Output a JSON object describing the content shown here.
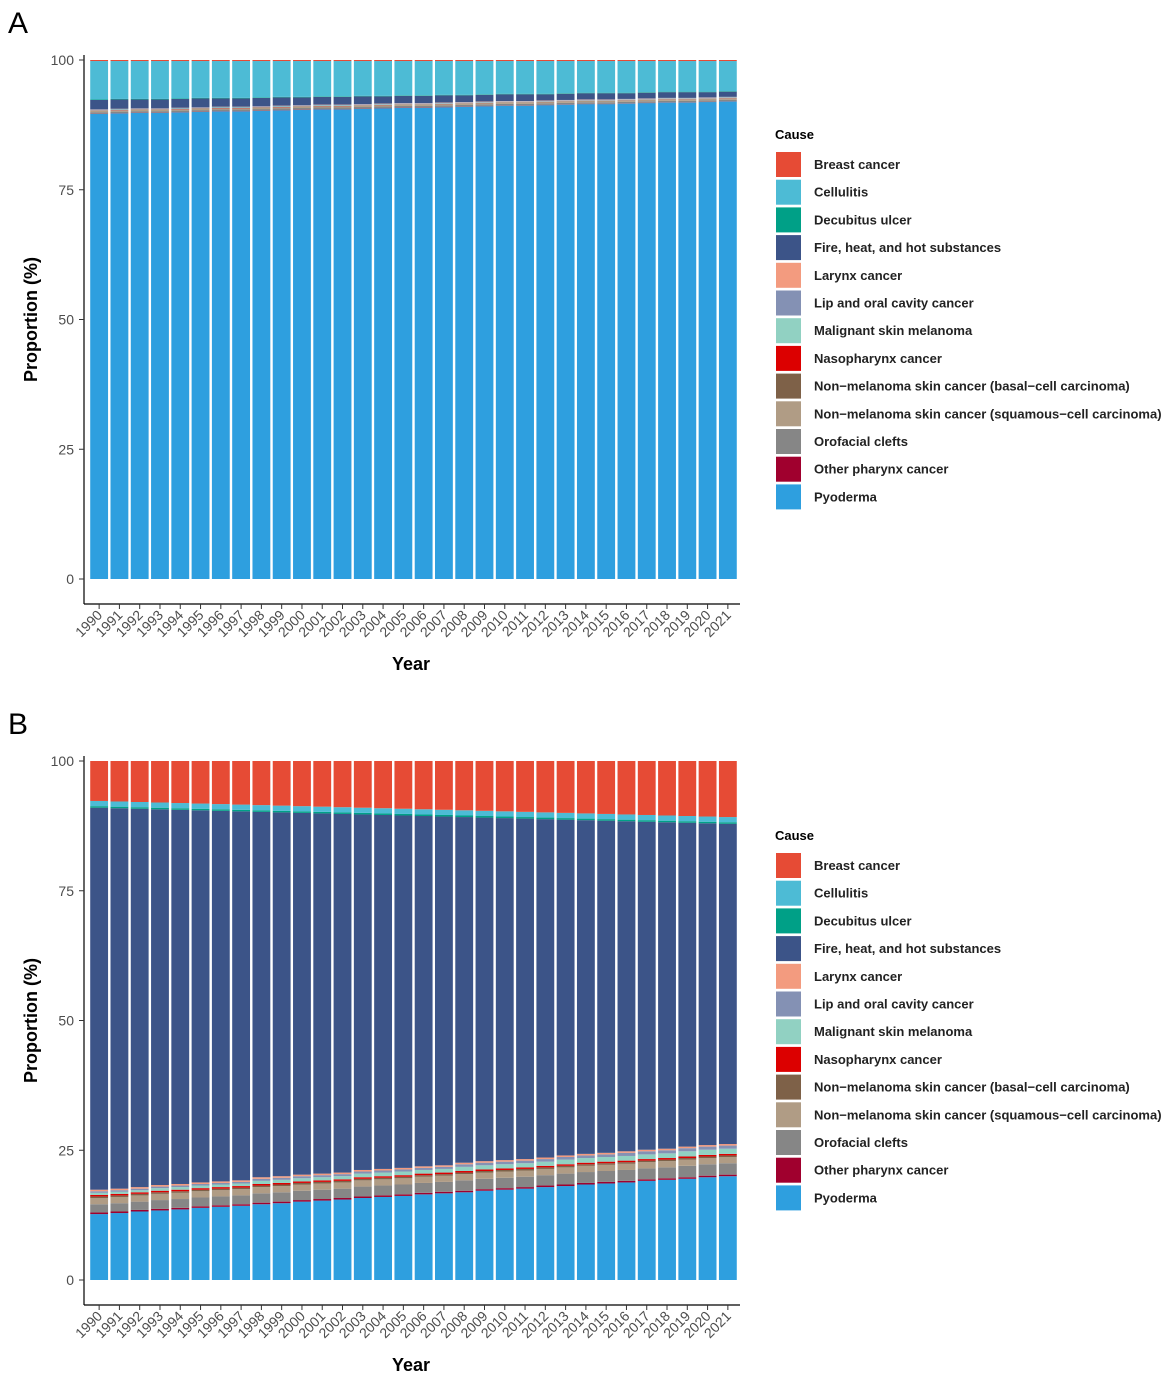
{
  "chart_data": [
    {
      "type": "stacked_bar",
      "panel": "A",
      "x_label": "Year",
      "y_label": "Proportion (%)",
      "legend_title": "Cause",
      "categories": [
        "1990",
        "1991",
        "1992",
        "1993",
        "1994",
        "1995",
        "1996",
        "1997",
        "1998",
        "1999",
        "2000",
        "2001",
        "2002",
        "2003",
        "2004",
        "2005",
        "2006",
        "2007",
        "2008",
        "2009",
        "2010",
        "2011",
        "2012",
        "2013",
        "2014",
        "2015",
        "2016",
        "2017",
        "2018",
        "2019",
        "2020",
        "2021"
      ],
      "ylim": [
        0,
        100
      ],
      "yticks": [
        0,
        25,
        50,
        75,
        100
      ],
      "series": [
        {
          "name": "Breast cancer",
          "color": "#E64B35",
          "values": [
            0.2,
            0.2,
            0.2,
            0.2,
            0.2,
            0.2,
            0.2,
            0.2,
            0.2,
            0.2,
            0.2,
            0.2,
            0.2,
            0.2,
            0.2,
            0.2,
            0.2,
            0.2,
            0.2,
            0.2,
            0.2,
            0.2,
            0.2,
            0.2,
            0.2,
            0.2,
            0.2,
            0.2,
            0.2,
            0.2,
            0.2,
            0.2
          ]
        },
        {
          "name": "Cellulitis",
          "color": "#4DBBD5",
          "values": [
            7.4,
            7.3,
            7.3,
            7.3,
            7.2,
            7.1,
            7.1,
            7.1,
            7.0,
            6.9,
            6.9,
            6.8,
            6.8,
            6.7,
            6.7,
            6.6,
            6.6,
            6.5,
            6.5,
            6.4,
            6.3,
            6.3,
            6.3,
            6.2,
            6.1,
            6.1,
            6.1,
            6.0,
            5.9,
            5.9,
            5.9,
            5.8
          ]
        },
        {
          "name": "Decubitus ulcer",
          "color": "#00A087",
          "values": [
            0.1,
            0.1,
            0.1,
            0.1,
            0.1,
            0.1,
            0.1,
            0.1,
            0.1,
            0.1,
            0.1,
            0.1,
            0.1,
            0.1,
            0.1,
            0.1,
            0.1,
            0.1,
            0.1,
            0.1,
            0.1,
            0.1,
            0.1,
            0.1,
            0.1,
            0.1,
            0.1,
            0.1,
            0.1,
            0.1,
            0.1,
            0.1
          ]
        },
        {
          "name": "Fire, heat, and hot substances",
          "color": "#3C5488",
          "values": [
            1.8,
            1.8,
            1.7,
            1.7,
            1.7,
            1.7,
            1.6,
            1.6,
            1.6,
            1.6,
            1.5,
            1.5,
            1.5,
            1.5,
            1.4,
            1.4,
            1.4,
            1.4,
            1.3,
            1.3,
            1.3,
            1.3,
            1.2,
            1.2,
            1.2,
            1.2,
            1.1,
            1.1,
            1.1,
            1.1,
            1.0,
            1.0
          ]
        },
        {
          "name": "Larynx cancer",
          "color": "#F39B7F",
          "values": [
            0.05,
            0.05,
            0.05,
            0.05,
            0.05,
            0.05,
            0.05,
            0.05,
            0.05,
            0.05,
            0.05,
            0.05,
            0.05,
            0.05,
            0.05,
            0.05,
            0.05,
            0.05,
            0.05,
            0.05,
            0.05,
            0.05,
            0.05,
            0.05,
            0.05,
            0.05,
            0.05,
            0.05,
            0.05,
            0.05,
            0.05,
            0.05
          ]
        },
        {
          "name": "Lip and oral cavity cancer",
          "color": "#8491B4",
          "values": [
            0.1,
            0.1,
            0.1,
            0.1,
            0.1,
            0.1,
            0.1,
            0.1,
            0.1,
            0.1,
            0.1,
            0.1,
            0.1,
            0.1,
            0.1,
            0.1,
            0.1,
            0.1,
            0.1,
            0.1,
            0.1,
            0.1,
            0.1,
            0.1,
            0.1,
            0.1,
            0.1,
            0.1,
            0.1,
            0.1,
            0.1,
            0.1
          ]
        },
        {
          "name": "Malignant skin melanoma",
          "color": "#91D1C2",
          "values": [
            0.1,
            0.1,
            0.1,
            0.1,
            0.1,
            0.1,
            0.1,
            0.1,
            0.1,
            0.1,
            0.1,
            0.1,
            0.1,
            0.1,
            0.1,
            0.1,
            0.1,
            0.1,
            0.1,
            0.1,
            0.1,
            0.1,
            0.1,
            0.1,
            0.1,
            0.1,
            0.1,
            0.1,
            0.1,
            0.1,
            0.1,
            0.1
          ]
        },
        {
          "name": "Nasopharynx cancer",
          "color": "#DC0000",
          "values": [
            0.05,
            0.05,
            0.05,
            0.05,
            0.05,
            0.05,
            0.05,
            0.05,
            0.05,
            0.05,
            0.05,
            0.05,
            0.05,
            0.05,
            0.05,
            0.05,
            0.05,
            0.05,
            0.05,
            0.05,
            0.05,
            0.05,
            0.05,
            0.05,
            0.05,
            0.05,
            0.05,
            0.05,
            0.05,
            0.05,
            0.05,
            0.05
          ]
        },
        {
          "name": "Non−melanoma skin cancer (basal−cell carcinoma)",
          "color": "#7E6148",
          "values": [
            0.05,
            0.05,
            0.05,
            0.05,
            0.05,
            0.05,
            0.05,
            0.05,
            0.05,
            0.05,
            0.05,
            0.05,
            0.05,
            0.05,
            0.05,
            0.05,
            0.05,
            0.05,
            0.05,
            0.05,
            0.05,
            0.05,
            0.05,
            0.05,
            0.05,
            0.05,
            0.05,
            0.05,
            0.05,
            0.05,
            0.05,
            0.05
          ]
        },
        {
          "name": "Non−melanoma skin cancer (squamous−cell carcinoma)",
          "color": "#B09C85",
          "values": [
            0.2,
            0.2,
            0.2,
            0.2,
            0.2,
            0.2,
            0.2,
            0.2,
            0.2,
            0.2,
            0.2,
            0.2,
            0.2,
            0.2,
            0.2,
            0.2,
            0.2,
            0.2,
            0.2,
            0.2,
            0.2,
            0.2,
            0.2,
            0.2,
            0.2,
            0.2,
            0.2,
            0.2,
            0.2,
            0.2,
            0.2,
            0.2
          ]
        },
        {
          "name": "Orofacial clefts",
          "color": "#868686",
          "values": [
            0.3,
            0.3,
            0.3,
            0.3,
            0.3,
            0.3,
            0.3,
            0.3,
            0.3,
            0.3,
            0.3,
            0.3,
            0.3,
            0.3,
            0.3,
            0.3,
            0.3,
            0.3,
            0.3,
            0.3,
            0.3,
            0.3,
            0.3,
            0.3,
            0.3,
            0.3,
            0.3,
            0.3,
            0.3,
            0.3,
            0.3,
            0.3
          ]
        },
        {
          "name": "Other pharynx cancer",
          "color": "#A0002E",
          "values": [
            0.05,
            0.05,
            0.05,
            0.05,
            0.05,
            0.05,
            0.05,
            0.05,
            0.05,
            0.05,
            0.05,
            0.05,
            0.05,
            0.05,
            0.05,
            0.05,
            0.05,
            0.05,
            0.05,
            0.05,
            0.05,
            0.05,
            0.05,
            0.05,
            0.05,
            0.05,
            0.05,
            0.05,
            0.05,
            0.05,
            0.05,
            0.05
          ]
        },
        {
          "name": "Pyoderma",
          "color": "#2E9FDF",
          "values": [
            89.6,
            89.7,
            89.8,
            89.8,
            89.9,
            90.0,
            90.1,
            90.1,
            90.2,
            90.3,
            90.4,
            90.5,
            90.5,
            90.6,
            90.7,
            90.8,
            90.8,
            90.9,
            91.0,
            91.1,
            91.2,
            91.2,
            91.3,
            91.4,
            91.5,
            91.5,
            91.6,
            91.7,
            91.8,
            91.8,
            91.9,
            92.0
          ]
        }
      ]
    },
    {
      "type": "stacked_bar",
      "panel": "B",
      "x_label": "Year",
      "y_label": "Proportion (%)",
      "legend_title": "Cause",
      "categories": [
        "1990",
        "1991",
        "1992",
        "1993",
        "1994",
        "1995",
        "1996",
        "1997",
        "1998",
        "1999",
        "2000",
        "2001",
        "2002",
        "2003",
        "2004",
        "2005",
        "2006",
        "2007",
        "2008",
        "2009",
        "2010",
        "2011",
        "2012",
        "2013",
        "2014",
        "2015",
        "2016",
        "2017",
        "2018",
        "2019",
        "2020",
        "2021"
      ],
      "ylim": [
        0,
        100
      ],
      "yticks": [
        0,
        25,
        50,
        75,
        100
      ],
      "series": [
        {
          "name": "Breast cancer",
          "color": "#E64B35",
          "values": [
            7.7,
            7.8,
            7.9,
            8.0,
            8.1,
            8.2,
            8.3,
            8.4,
            8.5,
            8.6,
            8.7,
            8.8,
            8.9,
            9.0,
            9.1,
            9.2,
            9.3,
            9.4,
            9.5,
            9.6,
            9.7,
            9.8,
            9.9,
            10.0,
            10.1,
            10.2,
            10.3,
            10.4,
            10.5,
            10.6,
            10.7,
            10.8
          ]
        },
        {
          "name": "Cellulitis",
          "color": "#4DBBD5",
          "values": [
            1.0,
            1.0,
            1.0,
            1.0,
            1.0,
            1.0,
            1.0,
            1.0,
            1.0,
            1.0,
            1.0,
            1.0,
            1.0,
            1.0,
            1.0,
            1.0,
            1.0,
            1.0,
            1.0,
            1.0,
            1.0,
            1.0,
            1.0,
            1.0,
            1.0,
            1.0,
            1.0,
            1.0,
            1.0,
            1.0,
            1.0,
            1.0
          ]
        },
        {
          "name": "Decubitus ulcer",
          "color": "#00A087",
          "values": [
            0.3,
            0.3,
            0.3,
            0.3,
            0.3,
            0.3,
            0.3,
            0.3,
            0.3,
            0.3,
            0.3,
            0.3,
            0.3,
            0.3,
            0.3,
            0.3,
            0.3,
            0.3,
            0.3,
            0.3,
            0.3,
            0.3,
            0.3,
            0.3,
            0.3,
            0.3,
            0.3,
            0.3,
            0.3,
            0.3,
            0.3,
            0.3
          ]
        },
        {
          "name": "Fire, heat, and hot substances",
          "color": "#3C5488",
          "values": [
            73.6,
            73.3,
            72.9,
            72.4,
            72.1,
            71.7,
            71.4,
            71.1,
            70.4,
            70.1,
            69.7,
            69.4,
            69.1,
            68.5,
            68.2,
            67.9,
            67.5,
            67.2,
            66.6,
            66.2,
            65.9,
            65.6,
            65.2,
            64.7,
            64.3,
            64.0,
            63.6,
            63.2,
            62.9,
            62.4,
            62.0,
            61.7
          ]
        },
        {
          "name": "Larynx cancer",
          "color": "#F39B7F",
          "values": [
            0.3,
            0.3,
            0.3,
            0.3,
            0.3,
            0.3,
            0.3,
            0.3,
            0.3,
            0.3,
            0.3,
            0.3,
            0.3,
            0.3,
            0.3,
            0.3,
            0.3,
            0.3,
            0.3,
            0.3,
            0.3,
            0.3,
            0.3,
            0.3,
            0.3,
            0.3,
            0.3,
            0.3,
            0.3,
            0.3,
            0.3,
            0.3
          ]
        },
        {
          "name": "Lip and oral cavity cancer",
          "color": "#8491B4",
          "values": [
            0.3,
            0.3,
            0.3,
            0.3,
            0.3,
            0.3,
            0.3,
            0.3,
            0.4,
            0.4,
            0.4,
            0.4,
            0.4,
            0.4,
            0.4,
            0.4,
            0.4,
            0.4,
            0.5,
            0.5,
            0.5,
            0.5,
            0.5,
            0.5,
            0.5,
            0.5,
            0.6,
            0.6,
            0.6,
            0.6,
            0.6,
            0.6
          ]
        },
        {
          "name": "Malignant skin melanoma",
          "color": "#91D1C2",
          "values": [
            0.4,
            0.4,
            0.4,
            0.5,
            0.5,
            0.5,
            0.5,
            0.5,
            0.6,
            0.6,
            0.6,
            0.6,
            0.6,
            0.7,
            0.7,
            0.7,
            0.7,
            0.7,
            0.8,
            0.8,
            0.8,
            0.8,
            0.8,
            0.9,
            0.9,
            0.9,
            0.9,
            0.9,
            0.9,
            1.0,
            1.0,
            1.0
          ]
        },
        {
          "name": "Nasopharynx cancer",
          "color": "#DC0000",
          "values": [
            0.3,
            0.3,
            0.3,
            0.3,
            0.3,
            0.3,
            0.3,
            0.3,
            0.3,
            0.3,
            0.3,
            0.3,
            0.3,
            0.3,
            0.3,
            0.3,
            0.3,
            0.3,
            0.3,
            0.3,
            0.3,
            0.3,
            0.3,
            0.3,
            0.3,
            0.3,
            0.3,
            0.3,
            0.3,
            0.3,
            0.3,
            0.3
          ]
        },
        {
          "name": "Non−melanoma skin cancer (basal−cell carcinoma)",
          "color": "#7E6148",
          "values": [
            0.3,
            0.3,
            0.3,
            0.3,
            0.3,
            0.3,
            0.3,
            0.3,
            0.3,
            0.3,
            0.3,
            0.3,
            0.3,
            0.3,
            0.3,
            0.3,
            0.3,
            0.3,
            0.3,
            0.3,
            0.3,
            0.3,
            0.3,
            0.3,
            0.3,
            0.3,
            0.3,
            0.3,
            0.3,
            0.3,
            0.3,
            0.3
          ]
        },
        {
          "name": "Non−melanoma skin cancer (squamous−cell carcinoma)",
          "color": "#B09C85",
          "values": [
            1.2,
            1.2,
            1.2,
            1.2,
            1.2,
            1.2,
            1.2,
            1.2,
            1.2,
            1.2,
            1.2,
            1.2,
            1.2,
            1.2,
            1.2,
            1.2,
            1.2,
            1.2,
            1.2,
            1.2,
            1.2,
            1.2,
            1.2,
            1.2,
            1.2,
            1.2,
            1.2,
            1.2,
            1.2,
            1.2,
            1.2,
            1.2
          ]
        },
        {
          "name": "Orofacial clefts",
          "color": "#868686",
          "values": [
            1.6,
            1.6,
            1.6,
            1.7,
            1.7,
            1.7,
            1.7,
            1.7,
            1.8,
            1.8,
            1.8,
            1.8,
            1.8,
            1.9,
            1.9,
            1.9,
            1.9,
            1.9,
            2.0,
            2.0,
            2.0,
            2.0,
            2.0,
            2.1,
            2.1,
            2.1,
            2.1,
            2.1,
            2.1,
            2.2,
            2.2,
            2.2
          ]
        },
        {
          "name": "Other pharynx cancer",
          "color": "#A0002E",
          "values": [
            0.3,
            0.3,
            0.3,
            0.3,
            0.3,
            0.3,
            0.3,
            0.3,
            0.3,
            0.3,
            0.3,
            0.3,
            0.3,
            0.3,
            0.3,
            0.3,
            0.3,
            0.3,
            0.3,
            0.3,
            0.3,
            0.3,
            0.3,
            0.3,
            0.3,
            0.3,
            0.3,
            0.3,
            0.3,
            0.3,
            0.3,
            0.3
          ]
        },
        {
          "name": "Pyoderma",
          "color": "#2E9FDF",
          "values": [
            12.7,
            12.9,
            13.2,
            13.4,
            13.6,
            13.9,
            14.1,
            14.3,
            14.6,
            14.8,
            15.1,
            15.3,
            15.5,
            15.8,
            16.0,
            16.2,
            16.5,
            16.7,
            16.9,
            17.2,
            17.4,
            17.6,
            17.9,
            18.1,
            18.4,
            18.6,
            18.8,
            19.1,
            19.3,
            19.5,
            19.8,
            20.0
          ]
        }
      ]
    }
  ]
}
